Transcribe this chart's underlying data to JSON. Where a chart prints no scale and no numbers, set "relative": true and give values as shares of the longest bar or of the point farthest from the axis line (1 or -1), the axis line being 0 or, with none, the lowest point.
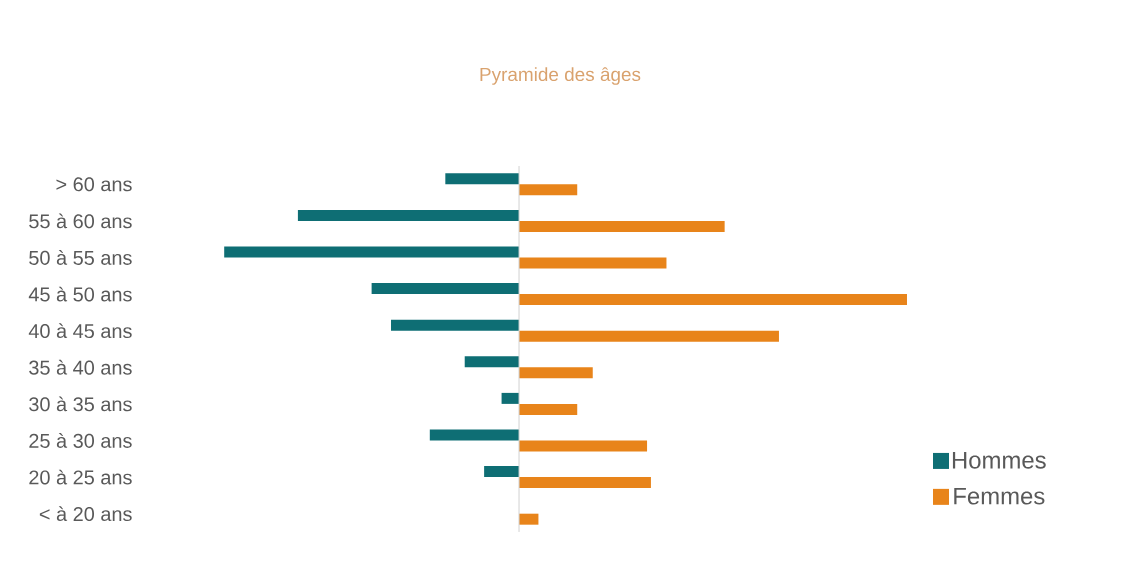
{
  "chart_data": {
    "type": "bar",
    "orientation": "horizontal",
    "relative": true,
    "title": "Pyramide des âges",
    "categories": [
      "> 60 ans",
      "55 à 60 ans",
      "50 à 55 ans",
      "45 à 50 ans",
      "40 à 45 ans",
      "35 à 40 ans",
      "30 à 35 ans",
      "25 à 30 ans",
      "20 à 25 ans",
      "< à 20 ans"
    ],
    "series": [
      {
        "name": "Hommes",
        "color": "#0e6e74",
        "values": [
          -0.19,
          -0.57,
          -0.76,
          -0.38,
          -0.33,
          -0.14,
          -0.045,
          -0.23,
          -0.09,
          0
        ]
      },
      {
        "name": "Femmes",
        "color": "#e8841a",
        "values": [
          0.15,
          0.53,
          0.38,
          1,
          0.67,
          0.19,
          0.15,
          0.33,
          0.34,
          0.05
        ]
      }
    ],
    "legend": "bottom right"
  }
}
